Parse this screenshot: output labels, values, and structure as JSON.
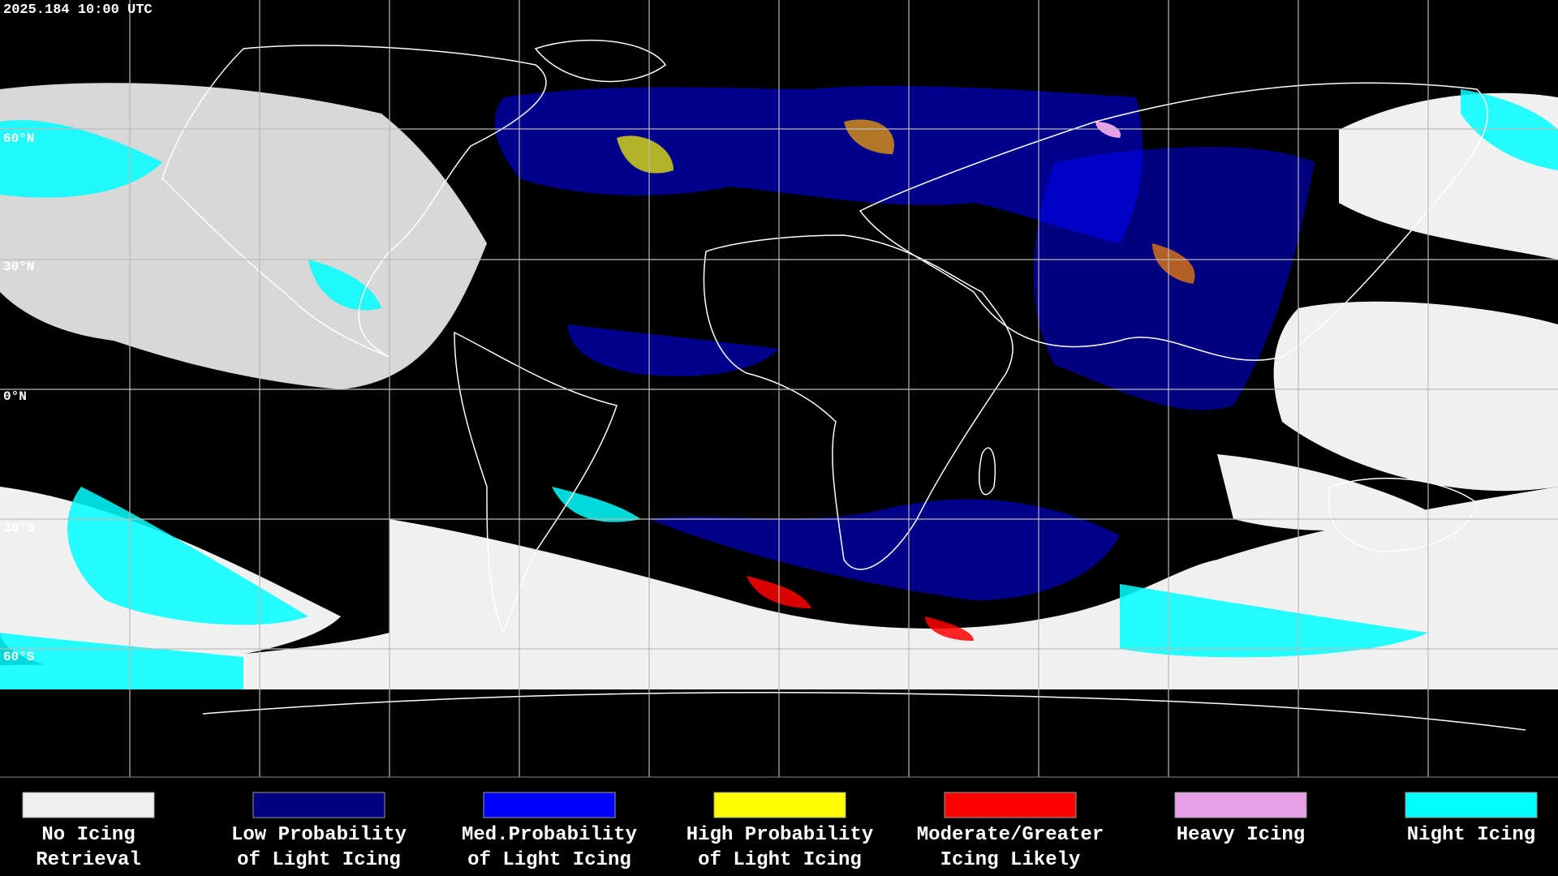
{
  "timestamp": "2025.184 10:00 UTC",
  "latitude_labels": [
    "60°N",
    "30°N",
    "0°N",
    "30°S",
    "60°S"
  ],
  "legend": [
    {
      "lines": [
        "No Icing",
        "Retrieval"
      ],
      "color": "#f0f0f0"
    },
    {
      "lines": [
        "Low Probability",
        "of Light Icing"
      ],
      "color": "#000080"
    },
    {
      "lines": [
        "Med.Probability",
        "of Light Icing"
      ],
      "color": "#0000ff"
    },
    {
      "lines": [
        "High Probability",
        "of Light Icing"
      ],
      "color": "#ffff00"
    },
    {
      "lines": [
        "Moderate/Greater",
        "Icing Likely"
      ],
      "color": "#ff0000"
    },
    {
      "lines": [
        "Heavy Icing"
      ],
      "color": "#e8a0e8"
    },
    {
      "lines": [
        "Night Icing"
      ],
      "color": "#00ffff"
    }
  ]
}
